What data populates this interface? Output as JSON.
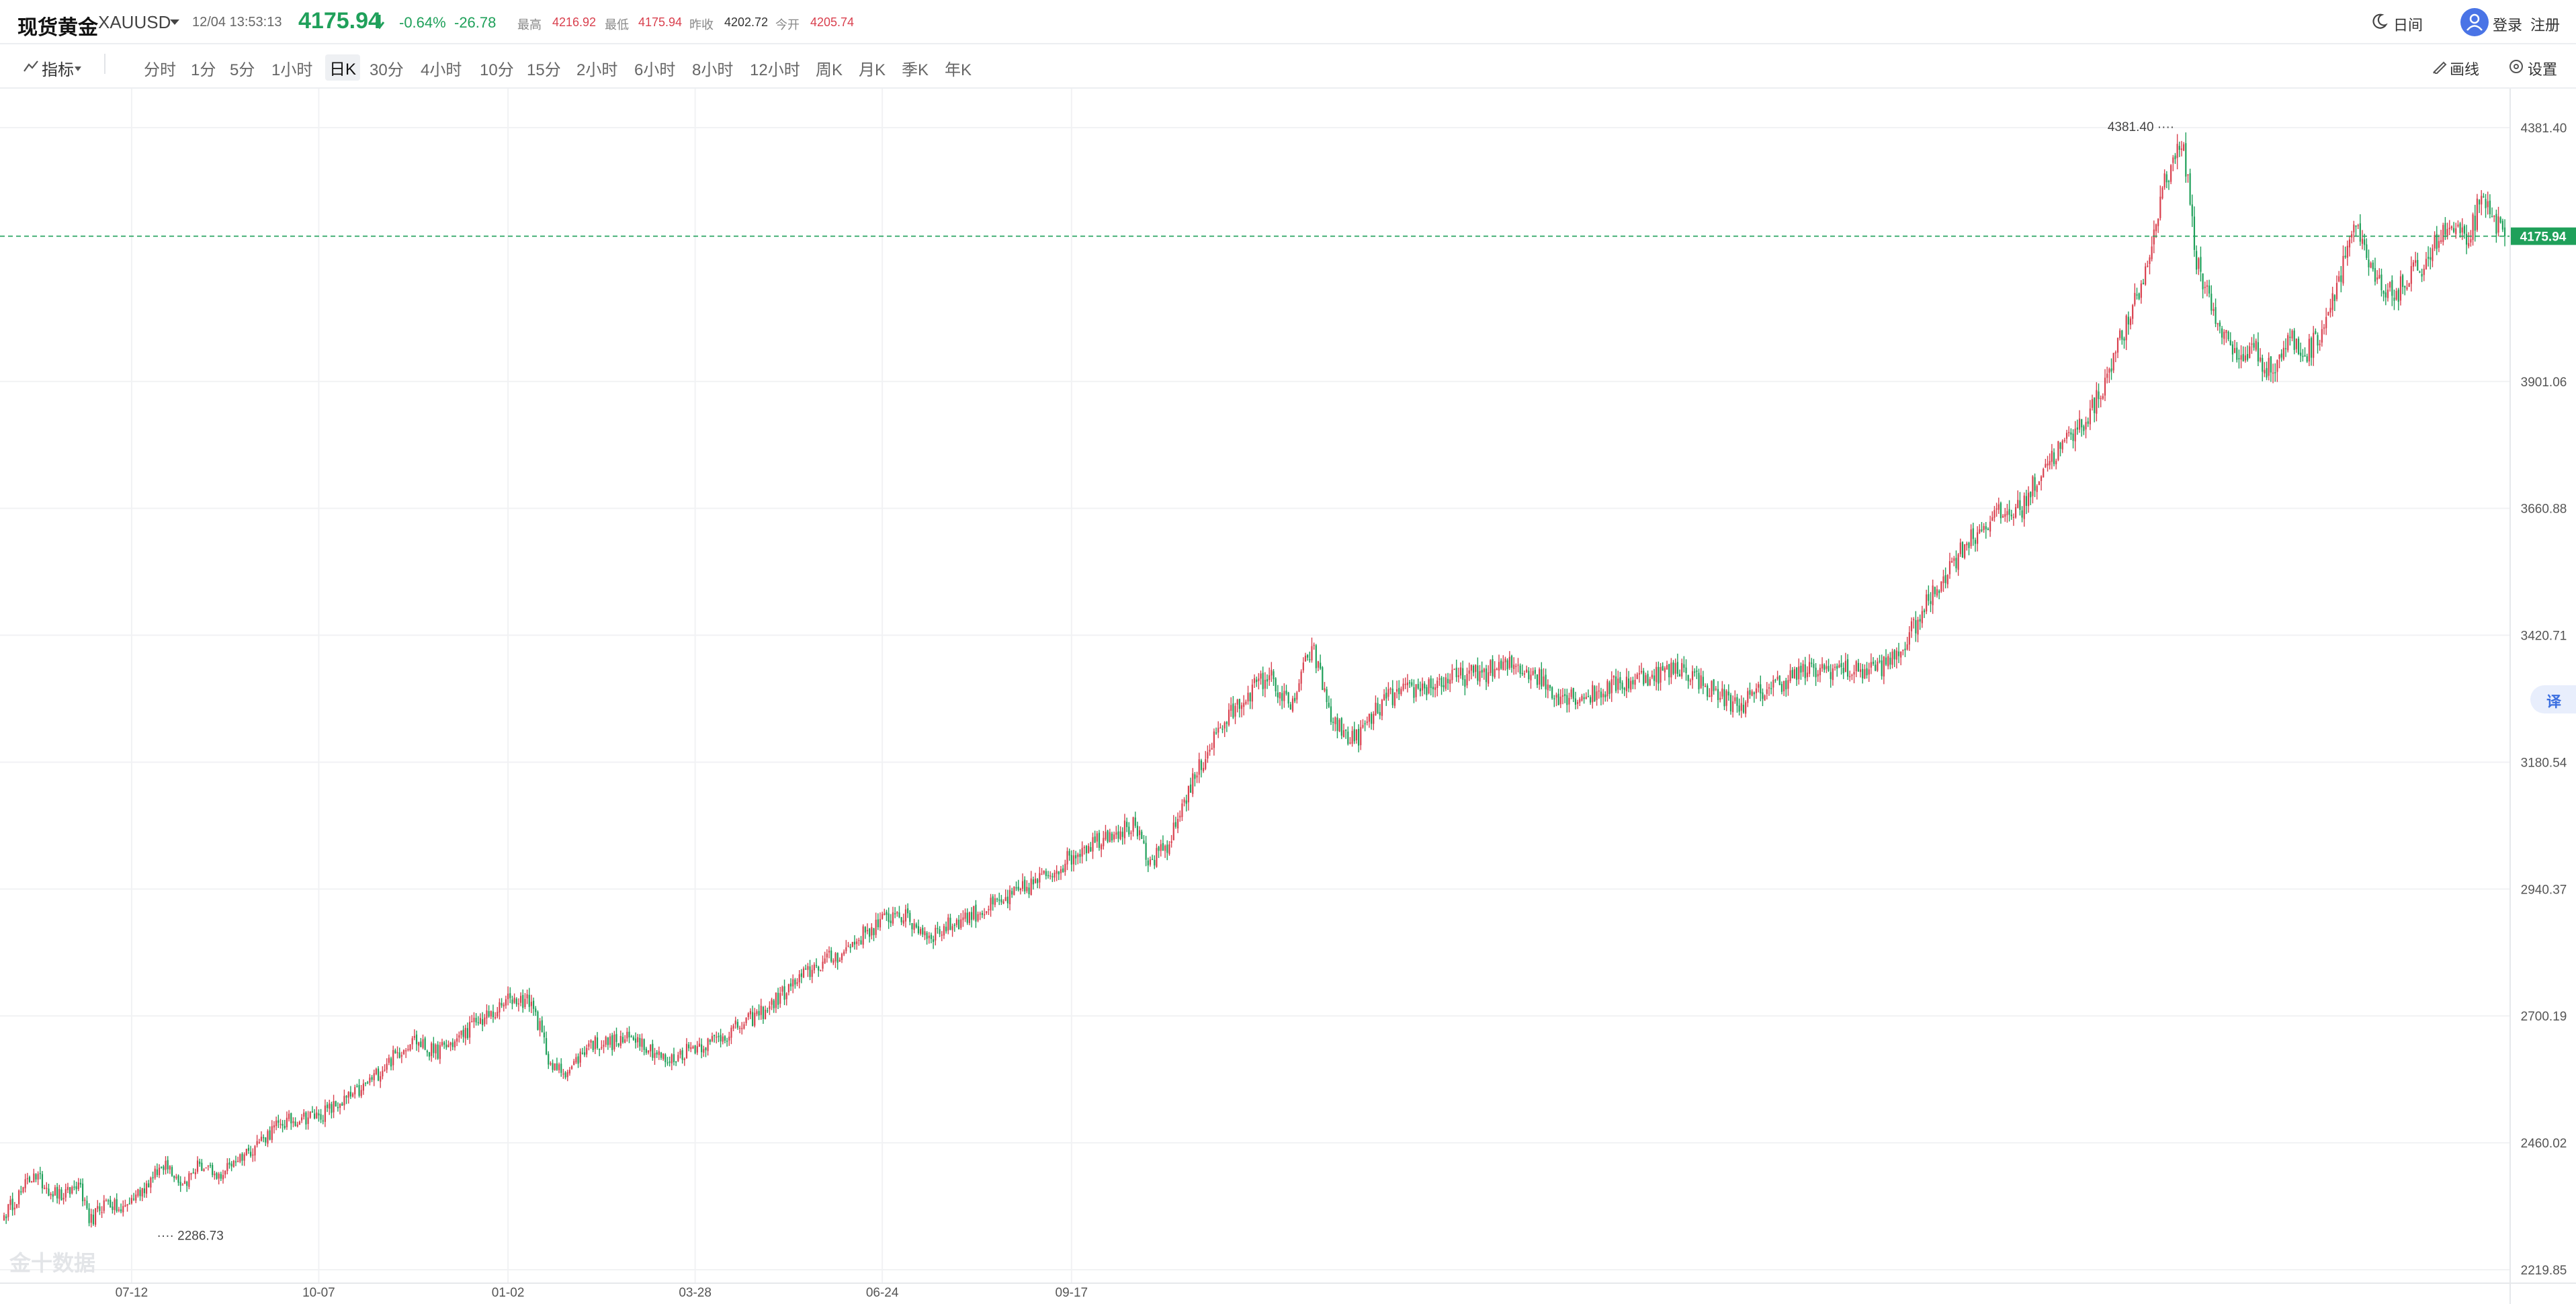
{
  "header": {
    "title": "现货黄金",
    "symbol": "XAUUSD",
    "datetime": "12/04 13:53:13",
    "price": "4175.94",
    "change_pct": "-0.64%",
    "change_abs": "-26.78",
    "stats": [
      {
        "label": "最高",
        "value": "4216.92",
        "tone": "up"
      },
      {
        "label": "最低",
        "value": "4175.94",
        "tone": "up"
      },
      {
        "label": "昨收",
        "value": "4202.72",
        "tone": "neutral"
      },
      {
        "label": "今开",
        "value": "4205.74",
        "tone": "up"
      }
    ],
    "right": {
      "theme": "日间",
      "login": "登录",
      "register": "注册"
    }
  },
  "toolbar": {
    "indicator": "指标",
    "periods": [
      "分时",
      "1分",
      "5分",
      "1小时",
      "日K",
      "30分",
      "4小时",
      "10分",
      "15分",
      "2小时",
      "6小时",
      "8小时",
      "12小时",
      "周K",
      "月K",
      "季K",
      "年K"
    ],
    "active_period": "日K",
    "draw": "画线",
    "settings": "设置"
  },
  "colors": {
    "up": "#d9404e",
    "down": "#1fa05a",
    "grid": "#f1f2f4",
    "axis_text": "#555555",
    "last_price_bg": "#1fa05a",
    "accent": "#3b6fe0"
  },
  "icons": [
    "caret-down-icon",
    "price-down-arrow-icon",
    "moon-icon",
    "user-avatar-icon",
    "indicator-icon",
    "draw-line-icon",
    "settings-icon"
  ],
  "watermark": "金十数据",
  "translate_label": "译",
  "chart_data": {
    "type": "candlestick",
    "y_ticks": [
      "4381.40",
      "3901.06",
      "3660.88",
      "3420.71",
      "3180.54",
      "2940.37",
      "2700.19",
      "2460.02",
      "2219.85"
    ],
    "x_ticks": [
      "07-12",
      "10-07",
      "01-02",
      "03-28",
      "06-24",
      "09-17"
    ],
    "ylim": [
      2219.85,
      4381.4
    ],
    "max_marker": "4381.40",
    "min_marker": "2286.73",
    "last_price": "4175.94",
    "grid": true,
    "anchor_closes": [
      [
        0,
        2323
      ],
      [
        8,
        2368
      ],
      [
        14,
        2402
      ],
      [
        20,
        2375
      ],
      [
        28,
        2356
      ],
      [
        35,
        2385
      ],
      [
        40,
        2308
      ],
      [
        48,
        2351
      ],
      [
        55,
        2330
      ],
      [
        62,
        2362
      ],
      [
        70,
        2393
      ],
      [
        76,
        2426
      ],
      [
        84,
        2381
      ],
      [
        92,
        2420
      ],
      [
        100,
        2392
      ],
      [
        108,
        2426
      ],
      [
        115,
        2445
      ],
      [
        122,
        2470
      ],
      [
        130,
        2496
      ],
      [
        140,
        2508
      ],
      [
        148,
        2512
      ],
      [
        158,
        2534
      ],
      [
        168,
        2560
      ],
      [
        180,
        2610
      ],
      [
        192,
        2658
      ],
      [
        202,
        2630
      ],
      [
        212,
        2652
      ],
      [
        222,
        2688
      ],
      [
        232,
        2708
      ],
      [
        238,
        2734
      ],
      [
        248,
        2727
      ],
      [
        258,
        2598
      ],
      [
        266,
        2598
      ],
      [
        275,
        2648
      ],
      [
        288,
        2651
      ],
      [
        298,
        2660
      ],
      [
        312,
        2612
      ],
      [
        322,
        2639
      ],
      [
        332,
        2651
      ],
      [
        345,
        2678
      ],
      [
        358,
        2712
      ],
      [
        370,
        2756
      ],
      [
        382,
        2795
      ],
      [
        395,
        2822
      ],
      [
        405,
        2858
      ],
      [
        420,
        2897
      ],
      [
        435,
        2852
      ],
      [
        450,
        2883
      ],
      [
        470,
        2917
      ],
      [
        490,
        2965
      ],
      [
        508,
        3020
      ],
      [
        520,
        3048
      ],
      [
        532,
        3060
      ],
      [
        538,
        2985
      ],
      [
        548,
        3025
      ],
      [
        555,
        3110
      ],
      [
        570,
        3235
      ],
      [
        585,
        3312
      ],
      [
        595,
        3345
      ],
      [
        605,
        3280
      ],
      [
        615,
        3400
      ],
      [
        625,
        3255
      ],
      [
        635,
        3220
      ],
      [
        650,
        3301
      ],
      [
        665,
        3320
      ],
      [
        680,
        3337
      ],
      [
        695,
        3350
      ],
      [
        710,
        3365
      ],
      [
        720,
        3348
      ],
      [
        730,
        3308
      ],
      [
        745,
        3305
      ],
      [
        760,
        3330
      ],
      [
        775,
        3346
      ],
      [
        790,
        3359
      ],
      [
        800,
        3325
      ],
      [
        815,
        3287
      ],
      [
        830,
        3322
      ],
      [
        845,
        3350
      ],
      [
        860,
        3358
      ],
      [
        872,
        3352
      ],
      [
        885,
        3365
      ],
      [
        892,
        3390
      ],
      [
        900,
        3450
      ],
      [
        912,
        3532
      ],
      [
        922,
        3593
      ],
      [
        935,
        3644
      ],
      [
        948,
        3658
      ],
      [
        960,
        3745
      ],
      [
        975,
        3810
      ],
      [
        985,
        3868
      ],
      [
        992,
        3955
      ],
      [
        1000,
        4020
      ],
      [
        1008,
        4120
      ],
      [
        1015,
        4268
      ],
      [
        1020,
        4325
      ],
      [
        1025,
        4350
      ],
      [
        1030,
        4150
      ],
      [
        1035,
        4080
      ],
      [
        1042,
        4005
      ],
      [
        1050,
        3942
      ],
      [
        1058,
        3965
      ],
      [
        1066,
        3918
      ],
      [
        1075,
        3985
      ],
      [
        1082,
        3948
      ],
      [
        1090,
        4000
      ],
      [
        1098,
        4100
      ],
      [
        1105,
        4198
      ],
      [
        1112,
        4117
      ],
      [
        1120,
        4060
      ],
      [
        1128,
        4080
      ],
      [
        1135,
        4111
      ],
      [
        1142,
        4153
      ],
      [
        1150,
        4192
      ],
      [
        1158,
        4160
      ],
      [
        1164,
        4236
      ],
      [
        1170,
        4213
      ],
      [
        1176,
        4176
      ]
    ]
  }
}
